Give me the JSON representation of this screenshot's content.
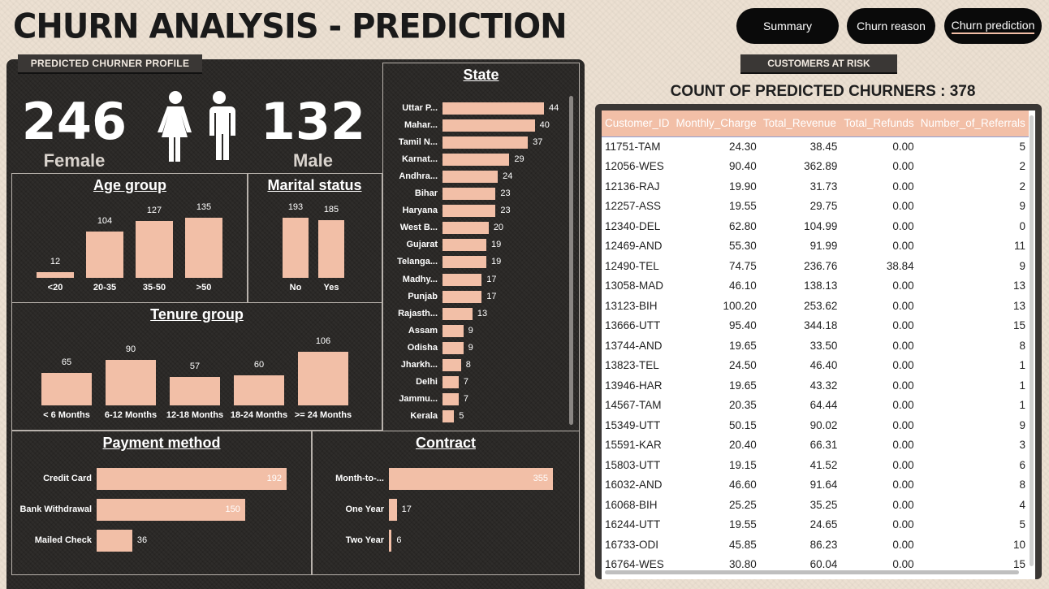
{
  "title": "CHURN ANALYSIS - PREDICTION",
  "nav": {
    "summary": "Summary",
    "churn_reason": "Churn reason",
    "churn_prediction": "Churn prediction"
  },
  "profile": {
    "tab_label": "PREDICTED CHURNER PROFILE",
    "female_count": "246",
    "female_label": "Female",
    "male_count": "132",
    "male_label": "Male"
  },
  "colors": {
    "bar": "#f2bfa7",
    "panel": "#2a2826",
    "header": "#f2bfa7"
  },
  "chart_data": [
    {
      "id": "age",
      "type": "bar",
      "title": "Age group",
      "categories": [
        "<20",
        "20-35",
        "35-50",
        ">50"
      ],
      "values": [
        12,
        104,
        127,
        135
      ]
    },
    {
      "id": "marital",
      "type": "bar",
      "title": "Marital status",
      "categories": [
        "No",
        "Yes"
      ],
      "values": [
        193,
        185
      ]
    },
    {
      "id": "tenure",
      "type": "bar",
      "title": "Tenure group",
      "categories": [
        "< 6 Months",
        "6-12 Months",
        "12-18 Months",
        "18-24 Months",
        ">= 24 Months"
      ],
      "values": [
        65,
        90,
        57,
        60,
        106
      ]
    },
    {
      "id": "state",
      "type": "bar",
      "orientation": "horizontal",
      "title": "State",
      "categories": [
        "Uttar P...",
        "Mahar...",
        "Tamil N...",
        "Karnat...",
        "Andhra...",
        "Bihar",
        "Haryana",
        "West B...",
        "Gujarat",
        "Telanga...",
        "Madhy...",
        "Punjab",
        "Rajasth...",
        "Assam",
        "Odisha",
        "Jharkh...",
        "Delhi",
        "Jammu...",
        "Kerala"
      ],
      "values": [
        44,
        40,
        37,
        29,
        24,
        23,
        23,
        20,
        19,
        19,
        17,
        17,
        13,
        9,
        9,
        8,
        7,
        7,
        5
      ]
    },
    {
      "id": "payment",
      "type": "bar",
      "orientation": "horizontal",
      "title": "Payment method",
      "categories": [
        "Credit Card",
        "Bank Withdrawal",
        "Mailed Check"
      ],
      "values": [
        192,
        150,
        36
      ]
    },
    {
      "id": "contract",
      "type": "bar",
      "orientation": "horizontal",
      "title": "Contract",
      "categories": [
        "Month-to-...",
        "One Year",
        "Two Year"
      ],
      "values": [
        355,
        17,
        6
      ]
    }
  ],
  "risk": {
    "tab_label": "CUSTOMERS AT RISK",
    "count_title": "COUNT OF PREDICTED CHURNERS : 378",
    "columns": [
      "Customer_ID",
      "Monthly_Charge",
      "Total_Revenue",
      "Total_Refunds",
      "Number_of_Referrals"
    ],
    "rows": [
      [
        "11751-TAM",
        "24.30",
        "38.45",
        "0.00",
        "5"
      ],
      [
        "12056-WES",
        "90.40",
        "362.89",
        "0.00",
        "2"
      ],
      [
        "12136-RAJ",
        "19.90",
        "31.73",
        "0.00",
        "2"
      ],
      [
        "12257-ASS",
        "19.55",
        "29.75",
        "0.00",
        "9"
      ],
      [
        "12340-DEL",
        "62.80",
        "104.99",
        "0.00",
        "0"
      ],
      [
        "12469-AND",
        "55.30",
        "91.99",
        "0.00",
        "11"
      ],
      [
        "12490-TEL",
        "74.75",
        "236.76",
        "38.84",
        "9"
      ],
      [
        "13058-MAD",
        "46.10",
        "138.13",
        "0.00",
        "13"
      ],
      [
        "13123-BIH",
        "100.20",
        "253.62",
        "0.00",
        "13"
      ],
      [
        "13666-UTT",
        "95.40",
        "344.18",
        "0.00",
        "15"
      ],
      [
        "13744-AND",
        "19.65",
        "33.50",
        "0.00",
        "8"
      ],
      [
        "13823-TEL",
        "24.50",
        "46.40",
        "0.00",
        "1"
      ],
      [
        "13946-HAR",
        "19.65",
        "43.32",
        "0.00",
        "1"
      ],
      [
        "14567-TAM",
        "20.35",
        "64.44",
        "0.00",
        "1"
      ],
      [
        "15349-UTT",
        "50.15",
        "90.02",
        "0.00",
        "9"
      ],
      [
        "15591-KAR",
        "20.40",
        "66.31",
        "0.00",
        "3"
      ],
      [
        "15803-UTT",
        "19.15",
        "41.52",
        "0.00",
        "6"
      ],
      [
        "16032-AND",
        "46.60",
        "91.64",
        "0.00",
        "8"
      ],
      [
        "16068-BIH",
        "25.25",
        "35.25",
        "0.00",
        "4"
      ],
      [
        "16244-UTT",
        "19.55",
        "24.65",
        "0.00",
        "5"
      ],
      [
        "16733-ODI",
        "45.85",
        "86.23",
        "0.00",
        "10"
      ],
      [
        "16764-WES",
        "30.80",
        "60.04",
        "0.00",
        "15"
      ]
    ]
  }
}
